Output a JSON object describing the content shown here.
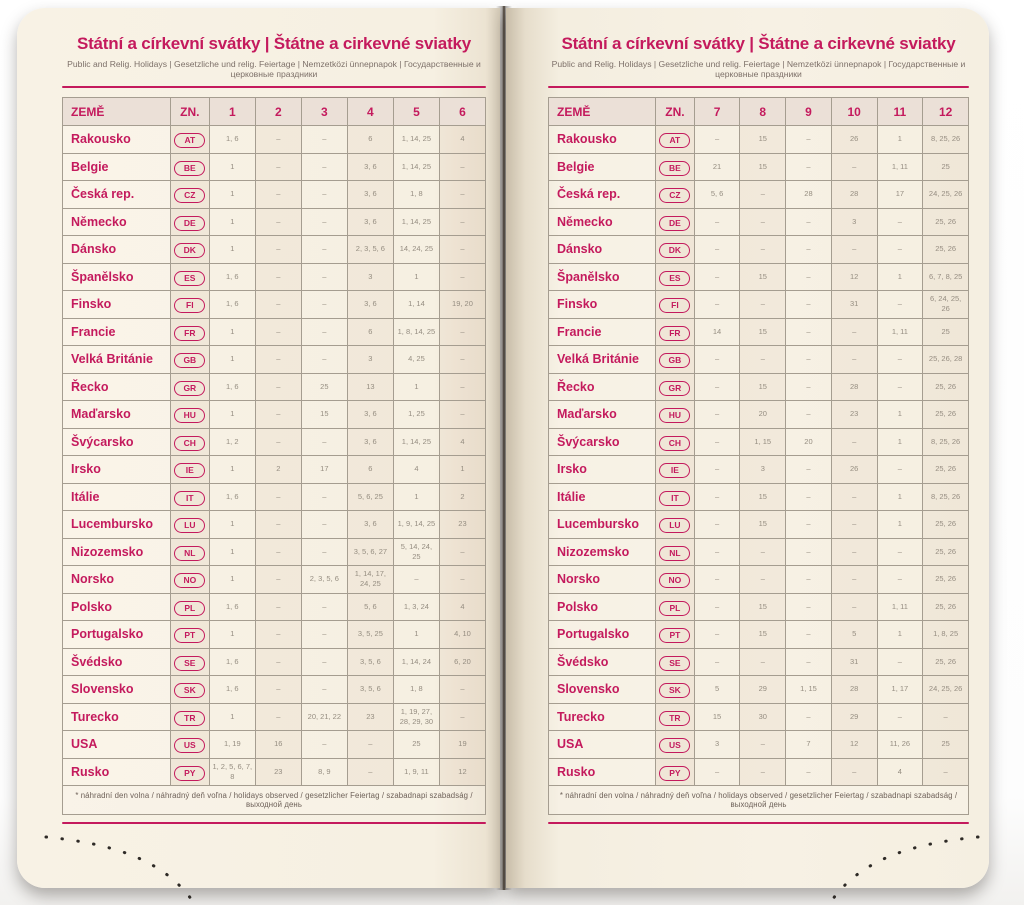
{
  "accent_color": "#c41a5d",
  "page_color": "#f6f0e2",
  "title": "Státní a církevní svátky | Štátne a cirkevné sviatky",
  "subtitle": "Public and Relig. Holidays | Gesetzliche und relig. Feiertage | Nemzetközi ünnepnapok | Государственные и церковные праздники",
  "footnote": "* náhradní den volna / náhradný deň voľna / holidays observed / gesetzlicher Feiertag / szabadnapi szabadság / выходной день",
  "left_table": {
    "headers": [
      "ZEMĚ",
      "ZN.",
      "1",
      "2",
      "3",
      "4",
      "5",
      "6"
    ],
    "rows": [
      [
        "Rakousko",
        "AT",
        "1, 6",
        "–",
        "–",
        "6",
        "1, 14, 25",
        "4"
      ],
      [
        "Belgie",
        "BE",
        "1",
        "–",
        "–",
        "3, 6",
        "1, 14, 25",
        "–"
      ],
      [
        "Česká rep.",
        "CZ",
        "1",
        "–",
        "–",
        "3, 6",
        "1, 8",
        "–"
      ],
      [
        "Německo",
        "DE",
        "1",
        "–",
        "–",
        "3, 6",
        "1, 14, 25",
        "–"
      ],
      [
        "Dánsko",
        "DK",
        "1",
        "–",
        "–",
        "2, 3, 5, 6",
        "14, 24, 25",
        "–"
      ],
      [
        "Španělsko",
        "ES",
        "1, 6",
        "–",
        "–",
        "3",
        "1",
        "–"
      ],
      [
        "Finsko",
        "FI",
        "1, 6",
        "–",
        "–",
        "3, 6",
        "1, 14",
        "19, 20"
      ],
      [
        "Francie",
        "FR",
        "1",
        "–",
        "–",
        "6",
        "1, 8, 14, 25",
        "–"
      ],
      [
        "Velká Británie",
        "GB",
        "1",
        "–",
        "–",
        "3",
        "4, 25",
        "–"
      ],
      [
        "Řecko",
        "GR",
        "1, 6",
        "–",
        "25",
        "13",
        "1",
        "–"
      ],
      [
        "Maďarsko",
        "HU",
        "1",
        "–",
        "15",
        "3, 6",
        "1, 25",
        "–"
      ],
      [
        "Švýcarsko",
        "CH",
        "1, 2",
        "–",
        "–",
        "3, 6",
        "1, 14, 25",
        "4"
      ],
      [
        "Irsko",
        "IE",
        "1",
        "2",
        "17",
        "6",
        "4",
        "1"
      ],
      [
        "Itálie",
        "IT",
        "1, 6",
        "–",
        "–",
        "5, 6, 25",
        "1",
        "2"
      ],
      [
        "Lucembursko",
        "LU",
        "1",
        "–",
        "–",
        "3, 6",
        "1, 9, 14, 25",
        "23"
      ],
      [
        "Nizozemsko",
        "NL",
        "1",
        "–",
        "–",
        "3, 5, 6, 27",
        "5, 14, 24, 25",
        "–"
      ],
      [
        "Norsko",
        "NO",
        "1",
        "–",
        "2, 3, 5, 6",
        "1, 14, 17, 24, 25",
        "–",
        "–"
      ],
      [
        "Polsko",
        "PL",
        "1, 6",
        "–",
        "–",
        "5, 6",
        "1, 3, 24",
        "4"
      ],
      [
        "Portugalsko",
        "PT",
        "1",
        "–",
        "–",
        "3, 5, 25",
        "1",
        "4, 10"
      ],
      [
        "Švédsko",
        "SE",
        "1, 6",
        "–",
        "–",
        "3, 5, 6",
        "1, 14, 24",
        "6, 20"
      ],
      [
        "Slovensko",
        "SK",
        "1, 6",
        "–",
        "–",
        "3, 5, 6",
        "1, 8",
        "–"
      ],
      [
        "Turecko",
        "TR",
        "1",
        "–",
        "20, 21, 22",
        "23",
        "1, 19, 27, 28, 29, 30",
        "–"
      ],
      [
        "USA",
        "US",
        "1, 19",
        "16",
        "–",
        "–",
        "25",
        "19"
      ],
      [
        "Rusko",
        "PY",
        "1, 2, 5, 6, 7, 8",
        "23",
        "8, 9",
        "–",
        "1, 9, 11",
        "12"
      ]
    ]
  },
  "right_table": {
    "headers": [
      "ZEMĚ",
      "ZN.",
      "7",
      "8",
      "9",
      "10",
      "11",
      "12"
    ],
    "rows": [
      [
        "Rakousko",
        "AT",
        "–",
        "15",
        "–",
        "26",
        "1",
        "8, 25, 26"
      ],
      [
        "Belgie",
        "BE",
        "21",
        "15",
        "–",
        "–",
        "1, 11",
        "25"
      ],
      [
        "Česká rep.",
        "CZ",
        "5, 6",
        "–",
        "28",
        "28",
        "17",
        "24, 25, 26"
      ],
      [
        "Německo",
        "DE",
        "–",
        "–",
        "–",
        "3",
        "–",
        "25, 26"
      ],
      [
        "Dánsko",
        "DK",
        "–",
        "–",
        "–",
        "–",
        "–",
        "25, 26"
      ],
      [
        "Španělsko",
        "ES",
        "–",
        "15",
        "–",
        "12",
        "1",
        "6, 7, 8, 25"
      ],
      [
        "Finsko",
        "FI",
        "–",
        "–",
        "–",
        "31",
        "–",
        "6, 24, 25, 26"
      ],
      [
        "Francie",
        "FR",
        "14",
        "15",
        "–",
        "–",
        "1, 11",
        "25"
      ],
      [
        "Velká Británie",
        "GB",
        "–",
        "–",
        "–",
        "–",
        "–",
        "25, 26, 28"
      ],
      [
        "Řecko",
        "GR",
        "–",
        "15",
        "–",
        "28",
        "–",
        "25, 26"
      ],
      [
        "Maďarsko",
        "HU",
        "–",
        "20",
        "–",
        "23",
        "1",
        "25, 26"
      ],
      [
        "Švýcarsko",
        "CH",
        "–",
        "1, 15",
        "20",
        "–",
        "1",
        "8, 25, 26"
      ],
      [
        "Irsko",
        "IE",
        "–",
        "3",
        "–",
        "26",
        "–",
        "25, 26"
      ],
      [
        "Itálie",
        "IT",
        "–",
        "15",
        "–",
        "–",
        "1",
        "8, 25, 26"
      ],
      [
        "Lucembursko",
        "LU",
        "–",
        "15",
        "–",
        "–",
        "1",
        "25, 26"
      ],
      [
        "Nizozemsko",
        "NL",
        "–",
        "–",
        "–",
        "–",
        "–",
        "25, 26"
      ],
      [
        "Norsko",
        "NO",
        "–",
        "–",
        "–",
        "–",
        "–",
        "25, 26"
      ],
      [
        "Polsko",
        "PL",
        "–",
        "15",
        "–",
        "–",
        "1, 11",
        "25, 26"
      ],
      [
        "Portugalsko",
        "PT",
        "–",
        "15",
        "–",
        "5",
        "1",
        "1, 8, 25"
      ],
      [
        "Švédsko",
        "SE",
        "–",
        "–",
        "–",
        "31",
        "–",
        "25, 26"
      ],
      [
        "Slovensko",
        "SK",
        "5",
        "29",
        "1, 15",
        "28",
        "1, 17",
        "24, 25, 26"
      ],
      [
        "Turecko",
        "TR",
        "15",
        "30",
        "–",
        "29",
        "–",
        "–"
      ],
      [
        "USA",
        "US",
        "3",
        "–",
        "7",
        "12",
        "11, 26",
        "25"
      ],
      [
        "Rusko",
        "PY",
        "–",
        "–",
        "–",
        "–",
        "4",
        "–"
      ]
    ]
  }
}
